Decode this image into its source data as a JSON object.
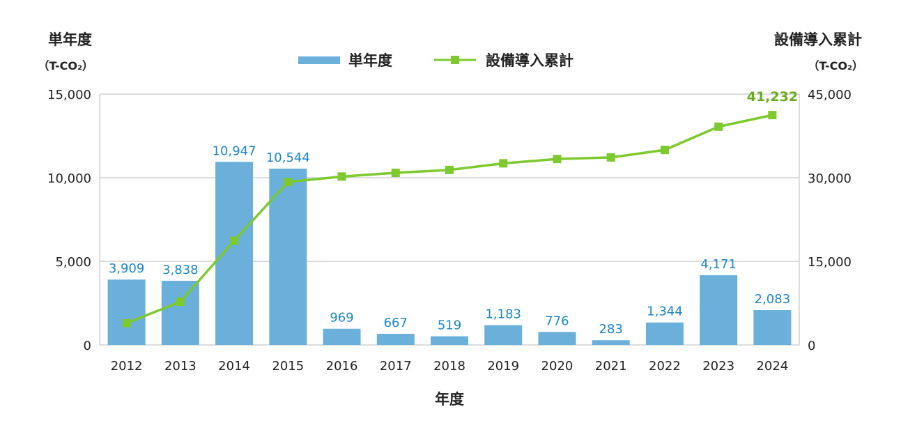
{
  "chart_data": {
    "type": "bar+line",
    "categories": [
      "2012",
      "2013",
      "2014",
      "2015",
      "2016",
      "2017",
      "2018",
      "2019",
      "2020",
      "2021",
      "2022",
      "2023",
      "2024"
    ],
    "series": [
      {
        "name": "単年度",
        "type": "bar",
        "axis": "left",
        "color": "#6ab0da",
        "values": [
          3909,
          3838,
          10947,
          10544,
          969,
          667,
          519,
          1183,
          776,
          283,
          1344,
          4171,
          2083
        ],
        "labels": [
          "3,909",
          "3,838",
          "10,947",
          "10,544",
          "969",
          "667",
          "519",
          "1,183",
          "776",
          "283",
          "1,344",
          "4,171",
          "2,083"
        ]
      },
      {
        "name": "設備導入累計",
        "type": "line",
        "axis": "right",
        "color": "#7dc92e",
        "values": [
          3909,
          7747,
          18694,
          29238,
          30207,
          30874,
          31393,
          32576,
          33352,
          33635,
          34979,
          39150,
          41232
        ],
        "end_label": "41,232"
      }
    ],
    "left_axis": {
      "title": "単年度",
      "unit": "（T-CO₂）",
      "ylim": [
        0,
        15000
      ],
      "ticks": [
        "0",
        "5,000",
        "10,000",
        "15,000"
      ],
      "tick_values": [
        0,
        5000,
        10000,
        15000
      ]
    },
    "right_axis": {
      "title": "設備導入累計",
      "unit": "（T-CO₂）",
      "ylim": [
        0,
        45000
      ],
      "ticks": [
        "0",
        "15,000",
        "30,000",
        "45,000"
      ],
      "tick_values": [
        0,
        15000,
        30000,
        45000
      ]
    },
    "xlabel": "年度",
    "grid": true,
    "legend": "top-center"
  }
}
